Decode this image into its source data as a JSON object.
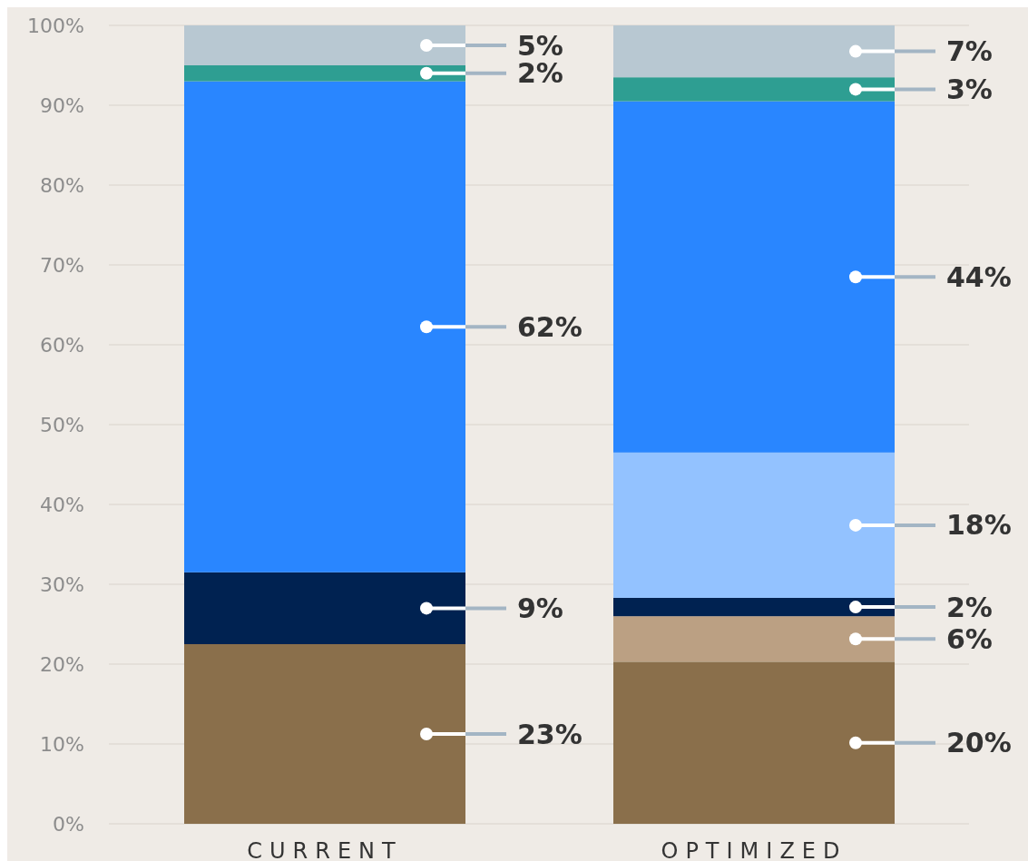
{
  "chart_data": {
    "type": "bar",
    "stacked": true,
    "categories": [
      "CURRENT",
      "OPTIMIZED"
    ],
    "series": [
      {
        "color": "#8a6f4b",
        "values": [
          22.5,
          20.3
        ],
        "value_labels": [
          "23%",
          "20%"
        ]
      },
      {
        "color": "#bba083",
        "values": [
          null,
          5.7
        ],
        "value_labels": [
          null,
          "6%"
        ]
      },
      {
        "color": "#002251",
        "values": [
          9,
          2.3
        ],
        "value_labels": [
          "9%",
          "2%"
        ]
      },
      {
        "color": "#93c2ff",
        "values": [
          null,
          18.2
        ],
        "value_labels": [
          null,
          "18%"
        ]
      },
      {
        "color": "#2986ff",
        "values": [
          61.5,
          44
        ],
        "value_labels": [
          "62%",
          "44%"
        ]
      },
      {
        "color": "#2e9e92",
        "values": [
          2,
          3
        ],
        "value_labels": [
          "2%",
          "3%"
        ]
      },
      {
        "color": "#b8c8d2",
        "values": [
          5,
          6.5
        ],
        "value_labels": [
          "5%",
          "7%"
        ]
      }
    ],
    "ylim": [
      0,
      100
    ],
    "yticks": [
      {
        "value": 0,
        "label": "0%"
      },
      {
        "value": 10,
        "label": "10%"
      },
      {
        "value": 20,
        "label": "20%"
      },
      {
        "value": 30,
        "label": "30%"
      },
      {
        "value": 40,
        "label": "40%"
      },
      {
        "value": 50,
        "label": "50%"
      },
      {
        "value": 60,
        "label": "60%"
      },
      {
        "value": 70,
        "label": "70%"
      },
      {
        "value": 80,
        "label": "80%"
      },
      {
        "value": 90,
        "label": "90%"
      },
      {
        "value": 100,
        "label": "100%"
      }
    ],
    "grid": "y"
  }
}
